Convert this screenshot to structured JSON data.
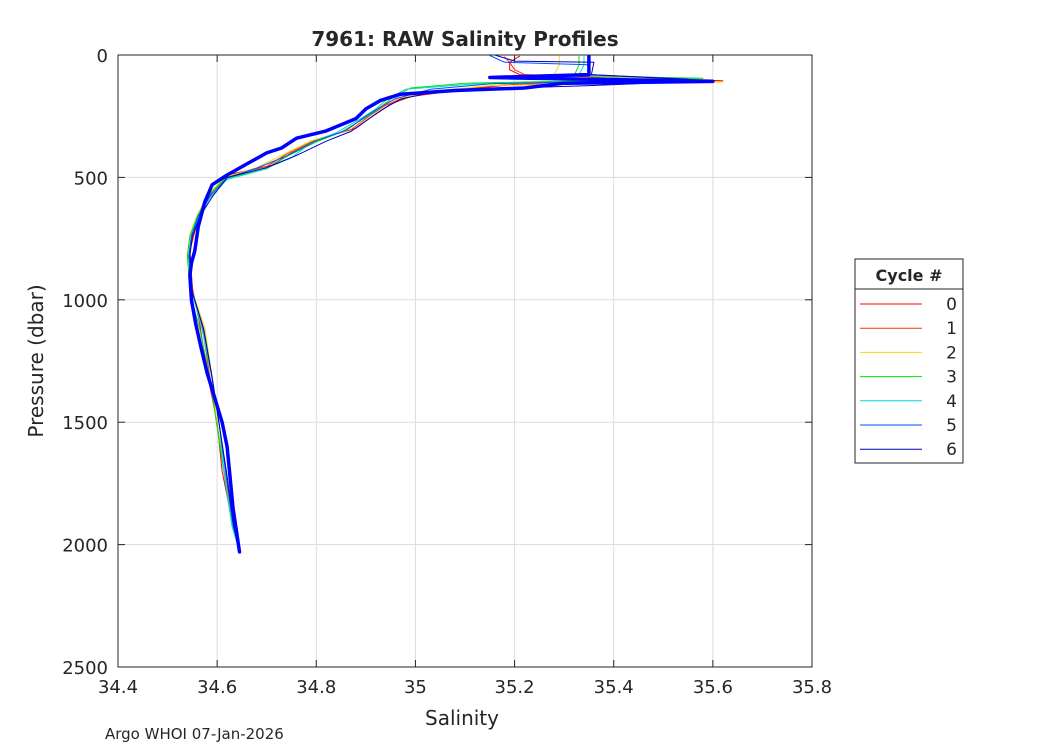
{
  "footer": {
    "credit": "Argo WHOI 07-Jan-2026"
  },
  "chart_data": {
    "type": "line",
    "title": "7961: RAW Salinity Profiles",
    "xlabel": "Salinity",
    "ylabel": "Pressure (dbar)",
    "xlim": [
      34.4,
      35.8
    ],
    "ylim": [
      0,
      2500
    ],
    "y_reversed": true,
    "xticks": [
      34.4,
      34.6,
      34.8,
      35.0,
      35.2,
      35.4,
      35.6,
      35.8
    ],
    "xtick_labels": [
      "34.4",
      "34.6",
      "34.8",
      "35",
      "35.2",
      "35.4",
      "35.6",
      "35.8"
    ],
    "yticks": [
      0,
      500,
      1000,
      1500,
      2000,
      2500
    ],
    "ytick_labels": [
      "0",
      "500",
      "1000",
      "1500",
      "2000",
      "2500"
    ],
    "grid": true,
    "legend": {
      "title": "Cycle #",
      "position": "right"
    },
    "series": [
      {
        "name": "0",
        "color": "#ff0000",
        "width": 1,
        "x": [
          35.21,
          35.19,
          35.19,
          35.21,
          35.62,
          35.2,
          35.1,
          34.99,
          34.95,
          34.92,
          34.88,
          34.81,
          34.75,
          34.71,
          34.62,
          34.59,
          34.57,
          34.555,
          34.545,
          34.55,
          34.565,
          34.58,
          34.6,
          34.61,
          34.63,
          34.645
        ],
        "y": [
          5,
          30,
          60,
          80,
          105,
          120,
          140,
          170,
          200,
          240,
          300,
          340,
          400,
          450,
          490,
          560,
          640,
          720,
          800,
          950,
          1100,
          1300,
          1500,
          1700,
          1900,
          2030
        ]
      },
      {
        "name": "1",
        "color": "#ff3000",
        "width": 1,
        "x": [
          35.18,
          35.19,
          35.2,
          35.22,
          35.6,
          35.18,
          35.08,
          34.98,
          34.94,
          34.91,
          34.87,
          34.8,
          34.74,
          34.7,
          34.62,
          34.585,
          34.565,
          34.55,
          34.545,
          34.55,
          34.57,
          34.585,
          34.6,
          34.615,
          34.63,
          34.645
        ],
        "y": [
          8,
          30,
          60,
          80,
          102,
          122,
          142,
          172,
          205,
          245,
          305,
          345,
          405,
          455,
          495,
          570,
          650,
          730,
          810,
          960,
          1110,
          1310,
          1510,
          1710,
          1910,
          2030
        ]
      },
      {
        "name": "2",
        "color": "#ffd700",
        "width": 1,
        "x": [
          35.29,
          35.29,
          35.28,
          35.62,
          35.15,
          35.05,
          34.97,
          34.93,
          34.9,
          34.86,
          34.79,
          34.73,
          34.68,
          34.615,
          34.58,
          34.56,
          34.545,
          34.54,
          34.55,
          34.575,
          34.59,
          34.6,
          34.615,
          34.63,
          34.645
        ],
        "y": [
          5,
          40,
          80,
          110,
          125,
          145,
          175,
          205,
          250,
          310,
          350,
          410,
          460,
          500,
          575,
          655,
          735,
          815,
          965,
          1115,
          1315,
          1515,
          1715,
          1915,
          2030
        ]
      },
      {
        "name": "3",
        "color": "#00e000",
        "width": 1,
        "x": [
          35.33,
          35.33,
          35.32,
          35.58,
          35.1,
          34.99,
          34.95,
          34.93,
          34.9,
          34.85,
          34.8,
          34.74,
          34.7,
          34.615,
          34.58,
          34.56,
          34.545,
          34.54,
          34.545,
          34.565,
          34.585,
          34.6,
          34.615,
          34.63,
          34.645
        ],
        "y": [
          5,
          40,
          85,
          95,
          115,
          135,
          180,
          215,
          255,
          315,
          355,
          415,
          465,
          505,
          580,
          660,
          740,
          820,
          970,
          1120,
          1320,
          1520,
          1720,
          1920,
          2030
        ]
      },
      {
        "name": "4",
        "color": "#00d8d8",
        "width": 1,
        "x": [
          35.34,
          35.34,
          35.33,
          35.57,
          35.12,
          34.98,
          34.94,
          34.92,
          34.89,
          34.84,
          34.79,
          34.75,
          34.69,
          34.62,
          34.585,
          34.562,
          34.548,
          34.542,
          34.55,
          34.57,
          34.59,
          34.605,
          34.615,
          34.63,
          34.645
        ],
        "y": [
          5,
          40,
          82,
          100,
          118,
          140,
          185,
          220,
          260,
          318,
          358,
          420,
          470,
          508,
          585,
          665,
          745,
          825,
          975,
          1125,
          1325,
          1525,
          1725,
          1925,
          2030
        ]
      },
      {
        "name": "5",
        "color": "#0050ff",
        "width": 1,
        "x": [
          35.15,
          35.18,
          35.35,
          35.35,
          35.55,
          35.15,
          35.03,
          34.96,
          34.93,
          34.9,
          34.86,
          34.8,
          34.74,
          34.68,
          34.62,
          34.585,
          34.562,
          34.548,
          34.543,
          34.55,
          34.572,
          34.59,
          34.605,
          34.618,
          34.632,
          34.645
        ],
        "y": [
          2,
          30,
          40,
          80,
          98,
          118,
          140,
          178,
          212,
          250,
          308,
          350,
          412,
          462,
          502,
          578,
          658,
          738,
          818,
          968,
          1118,
          1318,
          1518,
          1718,
          1918,
          2030
        ]
      },
      {
        "name": "6",
        "color": "#0000c0",
        "width": 1,
        "x": [
          35.16,
          35.2,
          35.36,
          35.355,
          35.6,
          35.35,
          35.2,
          35.05,
          34.97,
          34.94,
          34.91,
          34.87,
          34.82,
          34.76,
          34.7,
          34.62,
          34.59,
          34.565,
          34.55,
          34.545,
          34.55,
          34.573,
          34.59,
          34.605,
          34.62,
          34.633,
          34.645
        ],
        "y": [
          0,
          25,
          30,
          80,
          105,
          125,
          135,
          145,
          180,
          215,
          255,
          312,
          352,
          410,
          460,
          500,
          580,
          660,
          740,
          820,
          970,
          1120,
          1320,
          1520,
          1720,
          1920,
          2030
        ]
      },
      {
        "name": "",
        "color": "#0000ff",
        "width": 3.5,
        "x": [
          35.35,
          35.35,
          35.35,
          35.15,
          35.6,
          35.3,
          35.22,
          35.08,
          34.97,
          34.93,
          34.9,
          34.88,
          34.82,
          34.76,
          34.73,
          34.7,
          34.62,
          34.59,
          34.575,
          34.562,
          34.555,
          34.548,
          34.545,
          34.548,
          34.557,
          34.568,
          34.58,
          34.595,
          34.61,
          34.62,
          34.625,
          34.632,
          34.645
        ],
        "y": [
          5,
          30,
          80,
          92,
          108,
          115,
          135,
          145,
          160,
          185,
          220,
          260,
          310,
          340,
          380,
          400,
          490,
          530,
          600,
          700,
          800,
          850,
          900,
          1000,
          1100,
          1200,
          1300,
          1400,
          1500,
          1600,
          1700,
          1850,
          2030
        ]
      }
    ]
  }
}
